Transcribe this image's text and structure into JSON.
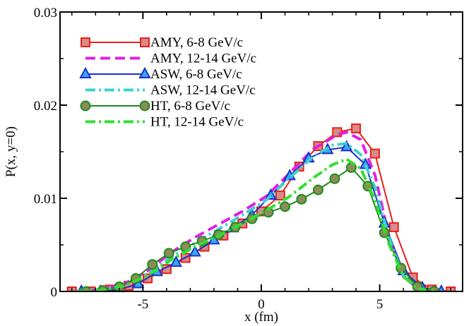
{
  "chart_data": {
    "type": "line",
    "xlabel": "x (fm)",
    "ylabel": "P(x, y=0)",
    "xlim": [
      -8.5,
      8.5
    ],
    "ylim": [
      0,
      0.03
    ],
    "xticks": [
      -5,
      0,
      5
    ],
    "xtick_labels": [
      "-5",
      "0",
      "5"
    ],
    "yticks": [
      0,
      0.01,
      0.02,
      0.03
    ],
    "ytick_labels": [
      "0",
      "0.01",
      "0.02",
      "0.03"
    ],
    "grid": false,
    "legend_position": "top-left",
    "series": [
      {
        "name": "AMY, 6-8 GeV/c",
        "color": "#e8201c",
        "style": "solid",
        "marker": "square",
        "x": [
          -8.0,
          -7.2,
          -6.4,
          -5.6,
          -4.8,
          -4.0,
          -3.2,
          -2.4,
          -1.6,
          -0.8,
          0.0,
          0.8,
          1.6,
          2.4,
          3.2,
          4.0,
          4.8,
          5.6,
          6.4,
          7.2,
          8.0
        ],
        "y": [
          0.0,
          0.0,
          0.0002,
          0.0006,
          0.0014,
          0.0024,
          0.0036,
          0.0048,
          0.006,
          0.0073,
          0.0086,
          0.0103,
          0.0134,
          0.0156,
          0.0171,
          0.0175,
          0.0148,
          0.0069,
          0.0015,
          0.0002,
          0.0
        ]
      },
      {
        "name": "AMY, 12-14 GeV/c",
        "color": "#e020e0",
        "style": "dashed",
        "marker": "none",
        "x": [
          -7.8,
          -6.8,
          -5.8,
          -4.8,
          -3.8,
          -2.8,
          -1.8,
          -0.8,
          0.2,
          1.2,
          2.2,
          3.2,
          3.6,
          4.2,
          4.8,
          5.4,
          6.0,
          6.6,
          7.4
        ],
        "y": [
          0.0,
          0.0002,
          0.0008,
          0.0022,
          0.0042,
          0.0058,
          0.0072,
          0.0086,
          0.0102,
          0.0127,
          0.0153,
          0.0168,
          0.0171,
          0.0163,
          0.0125,
          0.0058,
          0.0016,
          0.0003,
          0.0
        ]
      },
      {
        "name": "ASW, 6-8 GeV/c",
        "color": "#1c30c8",
        "style": "solid",
        "marker": "triangle",
        "x": [
          -7.6,
          -6.8,
          -6.0,
          -5.2,
          -4.4,
          -3.6,
          -2.8,
          -2.0,
          -1.2,
          -0.4,
          0.4,
          1.2,
          2.0,
          2.8,
          3.6,
          4.4,
          5.2,
          6.0,
          6.8,
          7.6
        ],
        "y": [
          0.0,
          0.0,
          0.0002,
          0.0008,
          0.0021,
          0.0031,
          0.0042,
          0.0055,
          0.0068,
          0.0082,
          0.0103,
          0.0124,
          0.0143,
          0.0152,
          0.0155,
          0.0136,
          0.0073,
          0.0022,
          0.0004,
          0.0
        ]
      },
      {
        "name": "ASW, 12-14 GeV/c",
        "color": "#40d0d0",
        "style": "dashdot",
        "marker": "none",
        "x": [
          -7.8,
          -6.8,
          -5.8,
          -4.8,
          -3.8,
          -2.8,
          -1.8,
          -0.8,
          0.2,
          1.2,
          2.2,
          3.0,
          3.6,
          4.2,
          4.8,
          5.4,
          6.0,
          6.6,
          7.4
        ],
        "y": [
          0.0,
          0.0002,
          0.0007,
          0.0019,
          0.0037,
          0.0052,
          0.0067,
          0.0082,
          0.0098,
          0.0122,
          0.0145,
          0.0157,
          0.0159,
          0.0147,
          0.0112,
          0.0057,
          0.0017,
          0.0003,
          0.0
        ]
      },
      {
        "name": "HT, 6-8 GeV/c",
        "color": "#1c8c1c",
        "style": "solid",
        "marker": "circle",
        "x": [
          -7.4,
          -6.7,
          -6.0,
          -5.3,
          -4.6,
          -3.9,
          -3.2,
          -2.5,
          -1.8,
          -1.1,
          -0.4,
          0.3,
          1.0,
          1.7,
          2.4,
          3.1,
          3.8,
          4.5,
          5.2,
          5.9,
          6.6,
          7.3
        ],
        "y": [
          0.0,
          0.0001,
          0.0005,
          0.0014,
          0.0029,
          0.0041,
          0.0048,
          0.0054,
          0.0061,
          0.0069,
          0.0078,
          0.0085,
          0.0091,
          0.0099,
          0.0109,
          0.0121,
          0.0133,
          0.0113,
          0.0063,
          0.0025,
          0.0005,
          0.0
        ]
      },
      {
        "name": "HT, 12-14 GeV/c",
        "color": "#30e030",
        "style": "dashdot",
        "marker": "none",
        "x": [
          -7.8,
          -6.8,
          -5.8,
          -4.8,
          -3.8,
          -2.8,
          -1.8,
          -0.8,
          0.2,
          1.2,
          2.2,
          3.0,
          3.6,
          4.2,
          4.8,
          5.4,
          6.0,
          6.6,
          7.4
        ],
        "y": [
          0.0,
          0.0001,
          0.0006,
          0.0017,
          0.0034,
          0.0048,
          0.006,
          0.0073,
          0.0087,
          0.0102,
          0.0122,
          0.0136,
          0.0142,
          0.0132,
          0.0098,
          0.005,
          0.0016,
          0.0003,
          0.0
        ]
      }
    ]
  }
}
